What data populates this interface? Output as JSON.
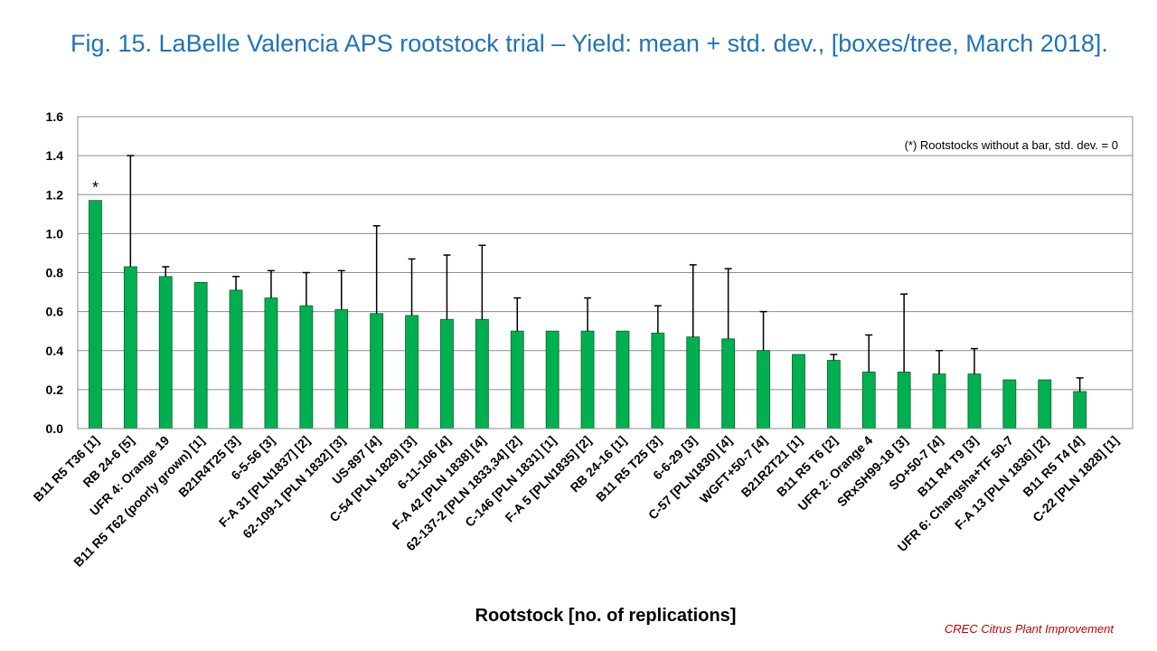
{
  "chart_data": {
    "type": "bar",
    "title": "Fig. 15. LaBelle Valencia APS rootstock trial – Yield: mean + std. dev., [boxes/tree, March 2018].",
    "xlabel": "Rootstock [no. of replications]",
    "ylabel": "",
    "ylim": [
      0,
      1.6
    ],
    "yticks": [
      "0.0",
      "0.2",
      "0.4",
      "0.6",
      "0.8",
      "1.0",
      "1.2",
      "1.4",
      "1.6"
    ],
    "grid": true,
    "bar_color": "#00b050",
    "annotation": "(*) Rootstocks without  a bar, std. dev. = 0",
    "marker": "*",
    "categories": [
      "B11 R5 T36 [1]",
      "RB 24-6 [5]",
      "UFR 4: Orange 19",
      "B11 R5 T62 (poorly grown) [1]",
      "B21R4T25 [3]",
      "6-5-56 [3]",
      "F-A 31 [PLN1837] [2]",
      "62-109-1 [PLN 1832] [3]",
      "US-897 [4]",
      "C-54 [PLN 1829] [3]",
      "6-11-106 [4]",
      "F-A 42 [PLN 1838] [4]",
      "62-137-2 [PLN 1833,34] [2]",
      "C-146 [PLN 1831] [1]",
      "F-A 5 [PLN1835] [2]",
      "RB 24-16 [1]",
      "B11 R5 T25 [3]",
      "6-6-29 [3]",
      "C-57 [PLN1830] [4]",
      "WGFT+50-7 [4]",
      "B21R2T21 [1]",
      "B11 R5 T6 [2]",
      "UFR 2: Orange 4",
      "SRxSH99-18 [3]",
      "SO+50-7 [4]",
      "B11 R4 T9 [3]",
      "UFR 6: Changsha+TF 50-7",
      "F-A 13 [PLN 1836] [2]",
      "B11 R5 T4 [4]",
      "C-22 [PLN 1828] [1]"
    ],
    "values": [
      1.17,
      0.83,
      0.78,
      0.75,
      0.71,
      0.67,
      0.63,
      0.61,
      0.59,
      0.58,
      0.56,
      0.56,
      0.5,
      0.5,
      0.5,
      0.5,
      0.49,
      0.47,
      0.46,
      0.4,
      0.38,
      0.35,
      0.29,
      0.29,
      0.28,
      0.28,
      0.25,
      0.25,
      0.19,
      0.0
    ],
    "error_upper": [
      1.17,
      1.4,
      0.83,
      0.75,
      0.78,
      0.81,
      0.8,
      0.81,
      1.04,
      0.87,
      0.89,
      0.94,
      0.67,
      0.5,
      0.67,
      0.5,
      0.63,
      0.84,
      0.82,
      0.6,
      0.38,
      0.38,
      0.48,
      0.69,
      0.4,
      0.41,
      0.25,
      0.25,
      0.26,
      0.0
    ]
  },
  "footer": {
    "credit": "CREC Citrus Plant Improvement"
  }
}
